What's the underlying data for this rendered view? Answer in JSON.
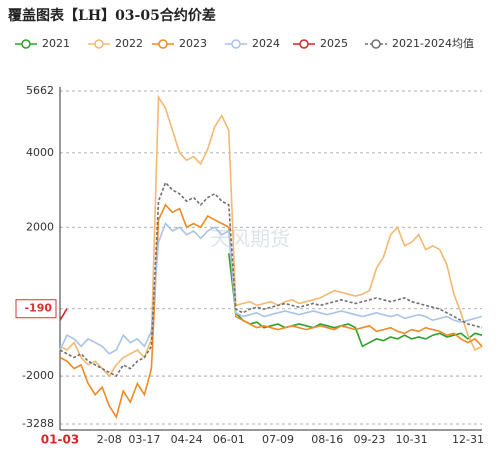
{
  "chart_data": {
    "type": "line",
    "title": "覆盖图表【LH】03-05合约价差",
    "watermark": "天风期货",
    "categories": [
      "01-03",
      null,
      null,
      null,
      null,
      null,
      null,
      "2-08",
      null,
      null,
      null,
      null,
      "03-17",
      null,
      null,
      null,
      null,
      null,
      "04-24",
      null,
      null,
      null,
      null,
      null,
      "06-01",
      null,
      null,
      null,
      null,
      null,
      null,
      "07-09",
      null,
      null,
      null,
      null,
      null,
      null,
      "08-16",
      null,
      null,
      null,
      null,
      null,
      "09-23",
      null,
      null,
      null,
      null,
      null,
      "10-31",
      null,
      null,
      null,
      null,
      null,
      null,
      null,
      null,
      null,
      "12-31"
    ],
    "ylim": [
      -3288,
      5662
    ],
    "yticks": [
      -3288,
      -2000,
      2000,
      4000,
      5662
    ],
    "reference_value": -190,
    "grid": true,
    "legend": "top",
    "series": [
      {
        "name": "2021",
        "color": "#2ca02c",
        "dashed": false,
        "values": [
          null,
          null,
          null,
          null,
          null,
          null,
          null,
          null,
          null,
          null,
          null,
          null,
          null,
          null,
          null,
          null,
          null,
          null,
          null,
          null,
          null,
          null,
          null,
          null,
          1300,
          -300,
          -500,
          -600,
          -550,
          -700,
          -650,
          -600,
          -700,
          -650,
          -600,
          -650,
          -700,
          -600,
          -650,
          -700,
          -650,
          -600,
          -700,
          -1200,
          -1100,
          -1000,
          -1050,
          -950,
          -1000,
          -900,
          -1000,
          -950,
          -1000,
          -900,
          -850,
          -950,
          -900,
          -850,
          -1000,
          -850,
          -900
        ]
      },
      {
        "name": "2022",
        "color": "#f5b870",
        "dashed": false,
        "values": [
          -1200,
          -1300,
          -1100,
          -1500,
          -1700,
          -1600,
          -1800,
          -2000,
          -1700,
          -1500,
          -1400,
          -1300,
          -1500,
          -1000,
          5500,
          5200,
          4600,
          4000,
          3800,
          3900,
          3700,
          4100,
          4700,
          5000,
          4600,
          -100,
          -50,
          0,
          -100,
          -50,
          0,
          -100,
          0,
          50,
          -50,
          0,
          50,
          100,
          200,
          300,
          250,
          200,
          150,
          200,
          300,
          900,
          1200,
          1800,
          2000,
          1500,
          1600,
          1800,
          1400,
          1500,
          1400,
          1000,
          200,
          -300,
          -900,
          -1300,
          -1200
        ]
      },
      {
        "name": "2023",
        "color": "#f08a24",
        "dashed": false,
        "values": [
          -1500,
          -1600,
          -1800,
          -1700,
          -2200,
          -2500,
          -2300,
          -2800,
          -3100,
          -2400,
          -2700,
          -2200,
          -2500,
          -1800,
          2200,
          2600,
          2400,
          2500,
          2000,
          2100,
          2000,
          2300,
          2200,
          2100,
          2000,
          -400,
          -500,
          -600,
          -700,
          -650,
          -700,
          -750,
          -700,
          -650,
          -700,
          -750,
          -700,
          -650,
          -700,
          -750,
          -650,
          -700,
          -750,
          -700,
          -650,
          -800,
          -750,
          -700,
          -800,
          -850,
          -750,
          -800,
          -700,
          -750,
          -800,
          -900,
          -850,
          -1000,
          -1100,
          -1000,
          -1200
        ]
      },
      {
        "name": "2024",
        "color": "#a9c4e8",
        "dashed": false,
        "values": [
          -1300,
          -900,
          -1000,
          -1200,
          -1000,
          -1100,
          -1200,
          -1400,
          -1300,
          -900,
          -1100,
          -1000,
          -1200,
          -800,
          1600,
          2100,
          1900,
          2000,
          1800,
          1900,
          1700,
          1900,
          2000,
          1800,
          1900,
          -300,
          -400,
          -350,
          -300,
          -400,
          -350,
          -300,
          -250,
          -300,
          -350,
          -300,
          -250,
          -300,
          -350,
          -300,
          -250,
          -300,
          -350,
          -400,
          -350,
          -300,
          -350,
          -400,
          -350,
          -450,
          -400,
          -350,
          -400,
          -500,
          -450,
          -400,
          -500,
          -550,
          -500,
          -450,
          -400
        ]
      },
      {
        "name": "2025",
        "color": "#d62728",
        "dashed": false,
        "values": [
          -500,
          -190,
          null,
          null,
          null,
          null,
          null,
          null,
          null,
          null,
          null,
          null,
          null,
          null,
          null,
          null,
          null,
          null,
          null,
          null,
          null,
          null,
          null,
          null,
          null,
          null,
          null,
          null,
          null,
          null,
          null,
          null,
          null,
          null,
          null,
          null,
          null,
          null,
          null,
          null,
          null,
          null,
          null,
          null,
          null,
          null,
          null,
          null,
          null,
          null,
          null,
          null,
          null,
          null,
          null,
          null,
          null,
          null,
          null,
          null,
          null
        ]
      },
      {
        "name": "2021-2024均值",
        "color": "#707070",
        "dashed": true,
        "values": [
          -1300,
          -1400,
          -1500,
          -1400,
          -1600,
          -1700,
          -1800,
          -1900,
          -2000,
          -1700,
          -1800,
          -1600,
          -1500,
          -1200,
          2700,
          3200,
          3000,
          2900,
          2700,
          2800,
          2600,
          2800,
          2900,
          2700,
          2600,
          -200,
          -300,
          -200,
          -150,
          -200,
          -150,
          -100,
          -50,
          -100,
          -150,
          -100,
          -50,
          -100,
          -50,
          0,
          50,
          0,
          -50,
          0,
          50,
          100,
          50,
          0,
          50,
          100,
          0,
          -50,
          -100,
          -150,
          -200,
          -300,
          -400,
          -500,
          -600,
          -650,
          -700
        ]
      }
    ]
  }
}
